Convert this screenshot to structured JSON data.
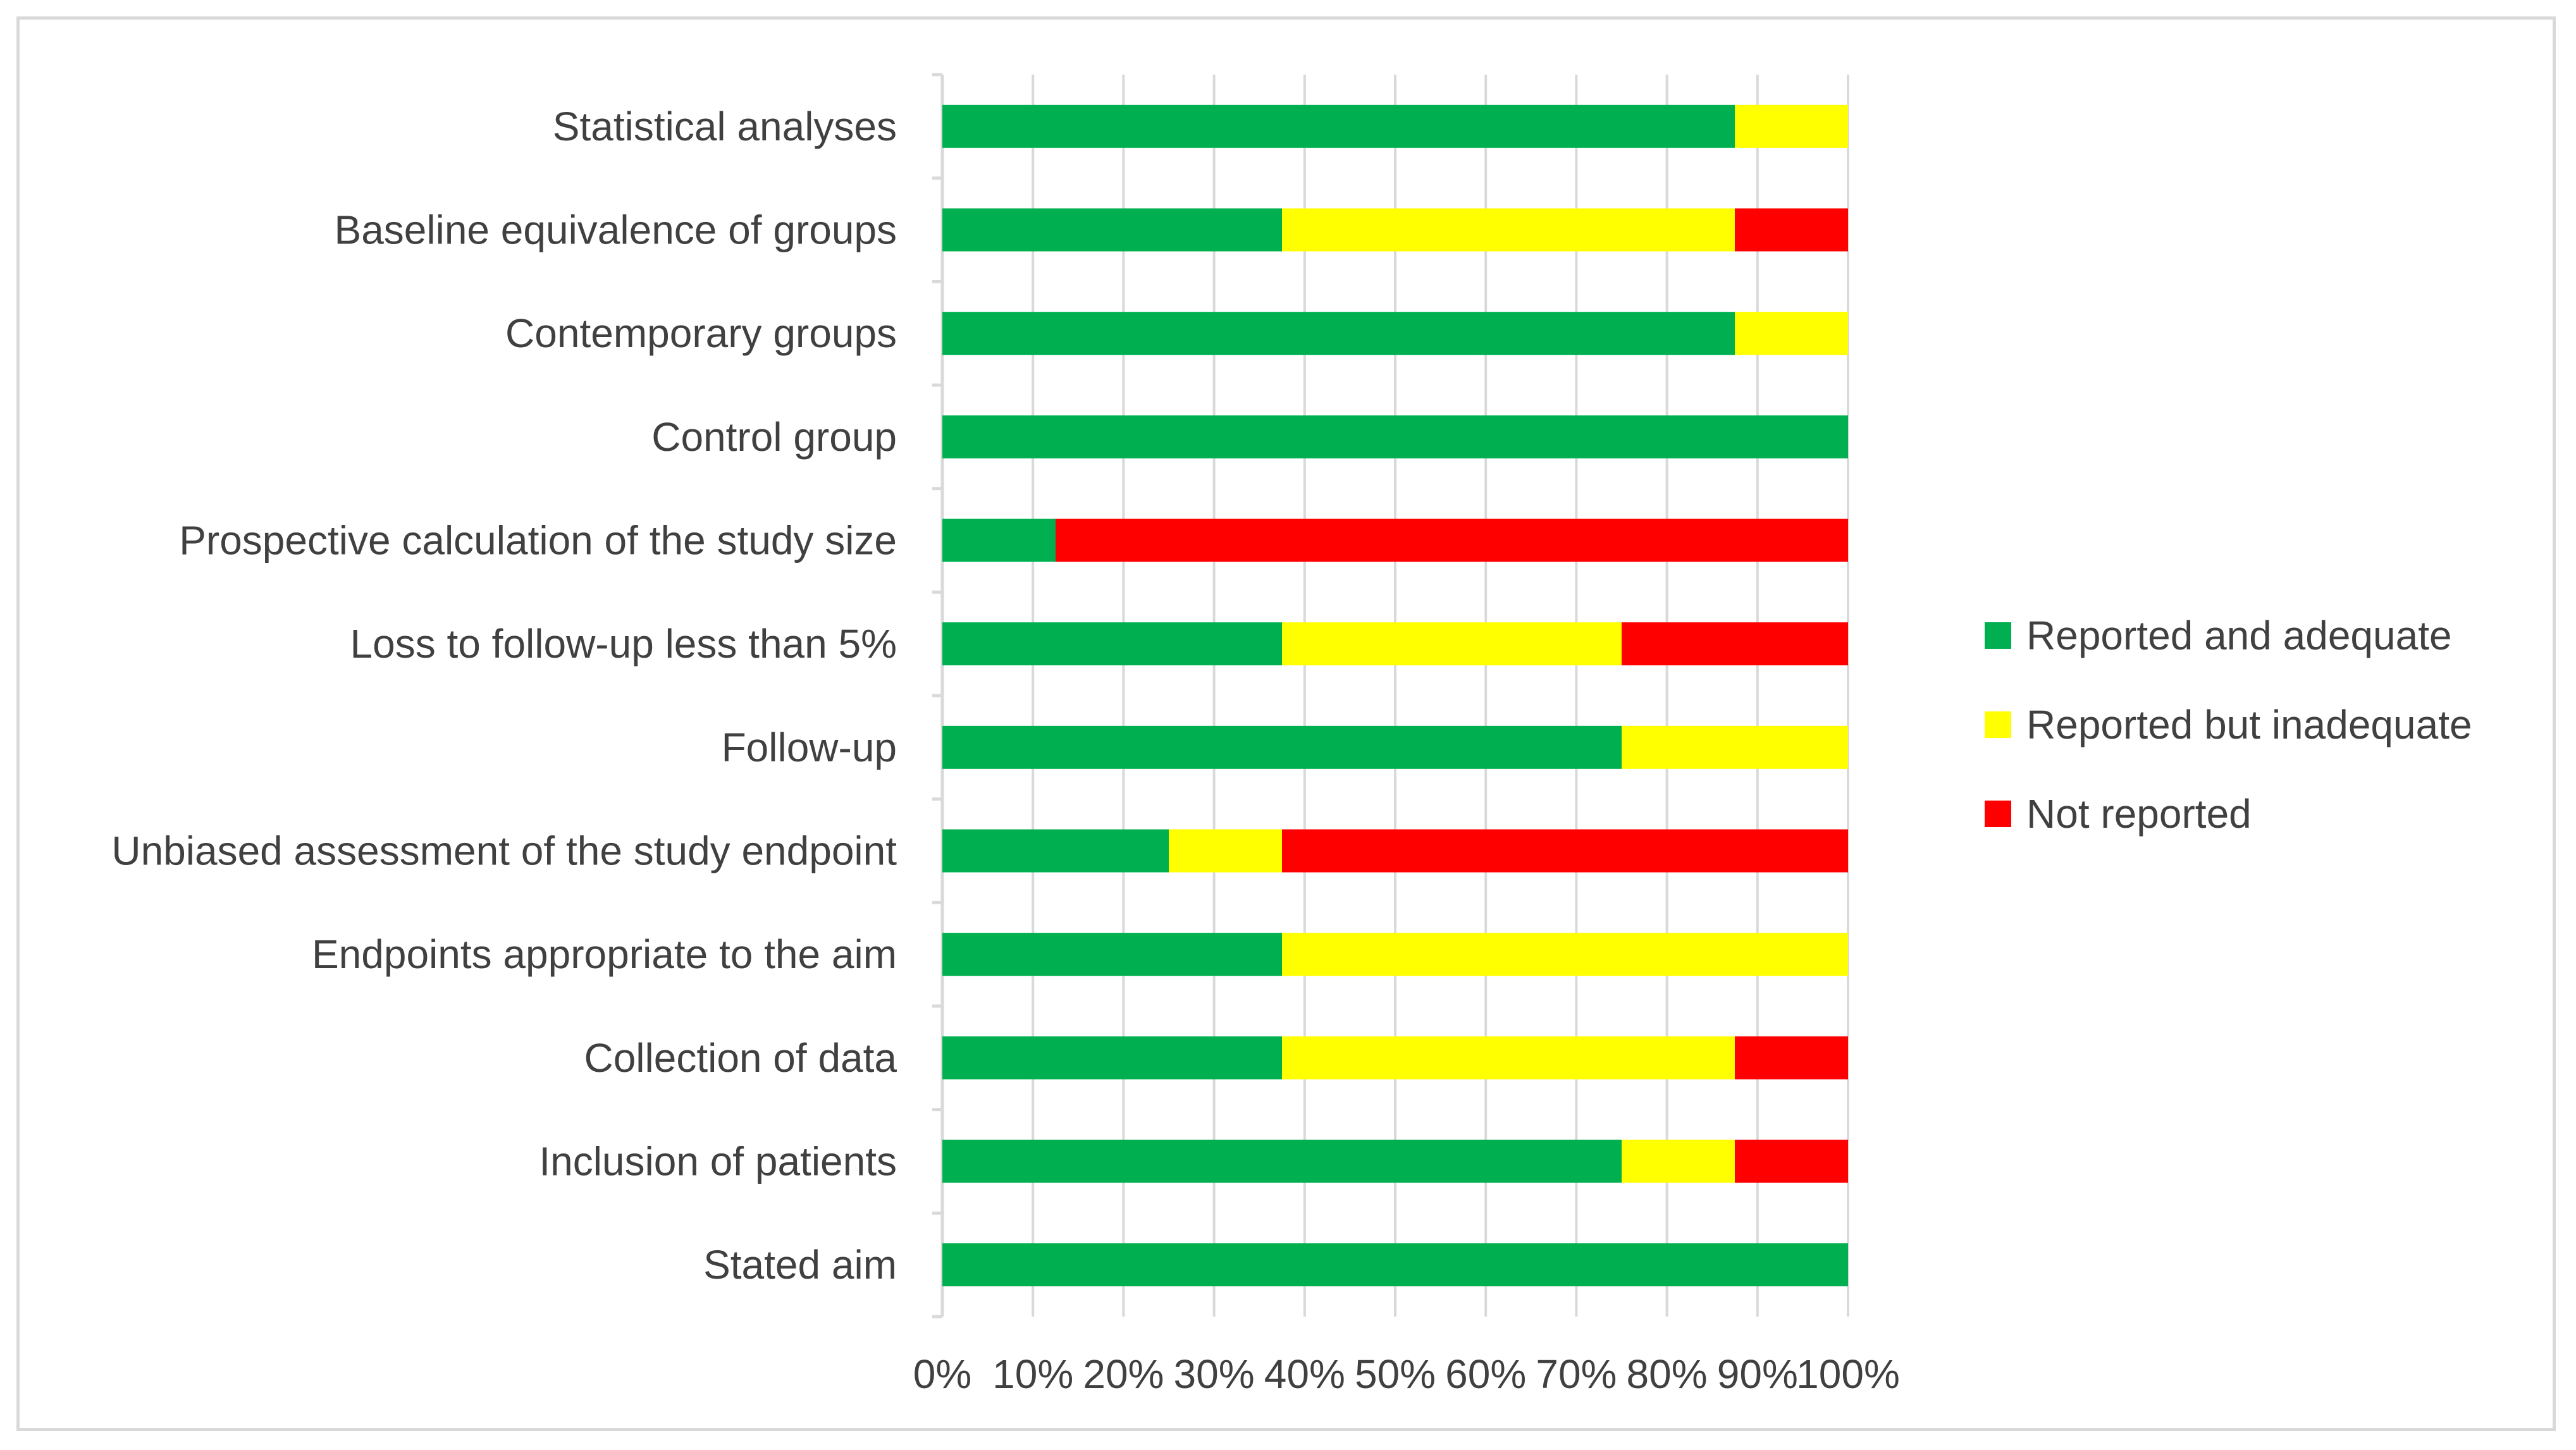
{
  "chart_data": {
    "type": "bar",
    "orientation": "horizontal",
    "stacked": "percent",
    "title": "",
    "xlabel": "",
    "ylabel": "",
    "xlim": [
      0,
      100
    ],
    "x_ticks": [
      "0%",
      "10%",
      "20%",
      "30%",
      "40%",
      "50%",
      "60%",
      "70%",
      "80%",
      "90%",
      "100%"
    ],
    "grid": true,
    "legend_position": "right",
    "categories": [
      "Statistical analyses",
      "Baseline equivalence of groups",
      "Contemporary groups",
      "Control group",
      "Prospective calculation of the study size",
      "Loss to follow-up less than 5%",
      "Follow-up",
      "Unbiased assessment of the study endpoint",
      "Endpoints appropriate to the aim",
      "Collection of data",
      "Inclusion of patients",
      "Stated aim"
    ],
    "series": [
      {
        "name": "Reported and adequate",
        "color": "#00b050",
        "values": [
          87.5,
          37.5,
          87.5,
          100,
          12.5,
          37.5,
          75,
          25,
          37.5,
          37.5,
          75,
          100
        ]
      },
      {
        "name": "Reported but inadequate",
        "color": "#ffff00",
        "values": [
          12.5,
          50,
          12.5,
          0,
          0,
          37.5,
          25,
          12.5,
          62.5,
          50,
          12.5,
          0
        ]
      },
      {
        "name": "Not reported",
        "color": "#ff0000",
        "values": [
          0,
          12.5,
          0,
          0,
          87.5,
          25,
          0,
          62.5,
          0,
          12.5,
          12.5,
          0
        ]
      }
    ]
  },
  "colors": {
    "grid": "#d9d9d9",
    "axis": "#d9d9d9",
    "text": "#404040"
  }
}
